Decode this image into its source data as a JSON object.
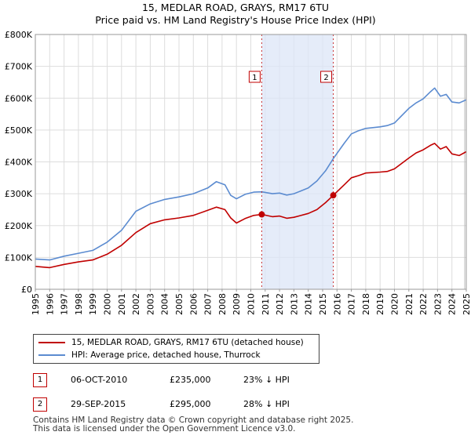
{
  "chart_data": {
    "type": "line",
    "title": "15, MEDLAR ROAD, GRAYS, RM17 6TU",
    "subtitle": "Price paid vs. HM Land Registry's House Price Index (HPI)",
    "xlim": [
      1995,
      2025
    ],
    "ylim": [
      0,
      800000
    ],
    "y_ticks": [
      0,
      100000,
      200000,
      300000,
      400000,
      500000,
      600000,
      700000,
      800000
    ],
    "y_tick_labels": [
      "£0",
      "£100K",
      "£200K",
      "£300K",
      "£400K",
      "£500K",
      "£600K",
      "£700K",
      "£800K"
    ],
    "x_ticks": [
      1995,
      1996,
      1997,
      1998,
      1999,
      2000,
      2001,
      2002,
      2003,
      2004,
      2005,
      2006,
      2007,
      2008,
      2009,
      2010,
      2011,
      2012,
      2013,
      2014,
      2015,
      2016,
      2017,
      2018,
      2019,
      2020,
      2021,
      2022,
      2023,
      2024,
      2025
    ],
    "x_tick_labels": [
      "1995",
      "1996",
      "1997",
      "1998",
      "1999",
      "2000",
      "2001",
      "2002",
      "2003",
      "2004",
      "2005",
      "2006",
      "2007",
      "2008",
      "2009",
      "2010",
      "2011",
      "2012",
      "2013",
      "2014",
      "2015",
      "2016",
      "2017",
      "2018",
      "2019",
      "2020",
      "2021",
      "2022",
      "2023",
      "2024",
      "2025"
    ],
    "grid": true,
    "shaded_region": [
      2010.76,
      2015.74
    ],
    "series": [
      {
        "name": "15, MEDLAR ROAD, GRAYS, RM17 6TU (detached house)",
        "color": "#c00000",
        "points": [
          [
            1995.0,
            72000
          ],
          [
            1996.0,
            68000
          ],
          [
            1997.0,
            78000
          ],
          [
            1998.0,
            86000
          ],
          [
            1999.0,
            92000
          ],
          [
            2000.0,
            110000
          ],
          [
            2001.0,
            138000
          ],
          [
            2002.0,
            178000
          ],
          [
            2003.0,
            206000
          ],
          [
            2004.0,
            218000
          ],
          [
            2005.0,
            224000
          ],
          [
            2006.0,
            232000
          ],
          [
            2007.0,
            248000
          ],
          [
            2007.6,
            258000
          ],
          [
            2008.2,
            250000
          ],
          [
            2008.6,
            224000
          ],
          [
            2009.0,
            208000
          ],
          [
            2009.6,
            222000
          ],
          [
            2010.2,
            232000
          ],
          [
            2010.76,
            235000
          ],
          [
            2011.5,
            228000
          ],
          [
            2012.0,
            230000
          ],
          [
            2012.5,
            223000
          ],
          [
            2013.0,
            226000
          ],
          [
            2014.0,
            238000
          ],
          [
            2014.6,
            250000
          ],
          [
            2015.2,
            272000
          ],
          [
            2015.74,
            295000
          ],
          [
            2016.5,
            328000
          ],
          [
            2017.0,
            350000
          ],
          [
            2017.5,
            357000
          ],
          [
            2018.0,
            365000
          ],
          [
            2019.0,
            368000
          ],
          [
            2019.5,
            370000
          ],
          [
            2020.0,
            378000
          ],
          [
            2021.0,
            412000
          ],
          [
            2021.5,
            428000
          ],
          [
            2022.0,
            438000
          ],
          [
            2022.5,
            452000
          ],
          [
            2022.8,
            458000
          ],
          [
            2023.2,
            440000
          ],
          [
            2023.6,
            448000
          ],
          [
            2024.0,
            425000
          ],
          [
            2024.5,
            420000
          ],
          [
            2025.0,
            432000
          ]
        ]
      },
      {
        "name": "HPI: Average price, detached house, Thurrock",
        "color": "#5b8bd0",
        "points": [
          [
            1995.0,
            95000
          ],
          [
            1996.0,
            92000
          ],
          [
            1997.0,
            104000
          ],
          [
            1998.0,
            113000
          ],
          [
            1999.0,
            122000
          ],
          [
            2000.0,
            148000
          ],
          [
            2001.0,
            185000
          ],
          [
            2002.0,
            245000
          ],
          [
            2003.0,
            268000
          ],
          [
            2004.0,
            282000
          ],
          [
            2005.0,
            290000
          ],
          [
            2006.0,
            300000
          ],
          [
            2007.0,
            318000
          ],
          [
            2007.6,
            338000
          ],
          [
            2008.2,
            328000
          ],
          [
            2008.6,
            295000
          ],
          [
            2009.0,
            284000
          ],
          [
            2009.6,
            298000
          ],
          [
            2010.2,
            305000
          ],
          [
            2010.76,
            306000
          ],
          [
            2011.5,
            300000
          ],
          [
            2012.0,
            302000
          ],
          [
            2012.5,
            296000
          ],
          [
            2013.0,
            300000
          ],
          [
            2014.0,
            318000
          ],
          [
            2014.6,
            340000
          ],
          [
            2015.2,
            372000
          ],
          [
            2015.74,
            410000
          ],
          [
            2016.5,
            458000
          ],
          [
            2017.0,
            488000
          ],
          [
            2017.5,
            498000
          ],
          [
            2018.0,
            505000
          ],
          [
            2019.0,
            510000
          ],
          [
            2019.5,
            514000
          ],
          [
            2020.0,
            522000
          ],
          [
            2021.0,
            568000
          ],
          [
            2021.5,
            585000
          ],
          [
            2022.0,
            598000
          ],
          [
            2022.5,
            620000
          ],
          [
            2022.8,
            632000
          ],
          [
            2023.2,
            606000
          ],
          [
            2023.6,
            612000
          ],
          [
            2024.0,
            588000
          ],
          [
            2024.5,
            585000
          ],
          [
            2025.0,
            595000
          ]
        ]
      }
    ],
    "markers": [
      {
        "label": "1",
        "x": 2010.76,
        "y": 235000
      },
      {
        "label": "2",
        "x": 2015.74,
        "y": 295000
      }
    ]
  },
  "legend": {
    "property_label": "15, MEDLAR ROAD, GRAYS, RM17 6TU (detached house)",
    "hpi_label": "HPI: Average price, detached house, Thurrock",
    "property_color": "#c00000",
    "hpi_color": "#5b8bd0"
  },
  "sales": [
    {
      "badge": "1",
      "date": "06-OCT-2010",
      "price": "£235,000",
      "hpi": "23% ↓ HPI"
    },
    {
      "badge": "2",
      "date": "29-SEP-2015",
      "price": "£295,000",
      "hpi": "28% ↓ HPI"
    }
  ],
  "footer": {
    "line1": "Contains HM Land Registry data © Crown copyright and database right 2025.",
    "line2": "This data is licensed under the Open Government Licence v3.0."
  }
}
